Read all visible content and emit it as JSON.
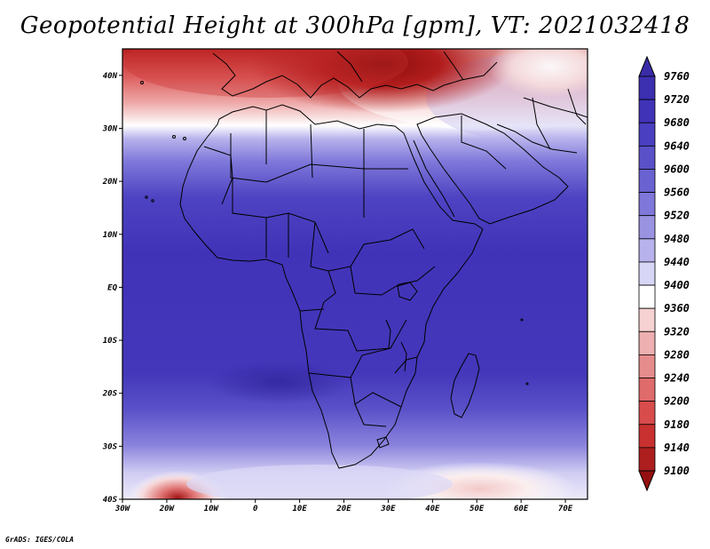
{
  "title": "Geopotential Height at 300hPa [gpm], VT: 2021032418",
  "credit": "GrADS: IGES/COLA",
  "map": {
    "region": "Africa",
    "lon_range": [
      -30,
      75
    ],
    "lat_range": [
      -40,
      45
    ],
    "lat_ticks": [
      {
        "value": 40,
        "label": "40N"
      },
      {
        "value": 30,
        "label": "30N"
      },
      {
        "value": 20,
        "label": "20N"
      },
      {
        "value": 10,
        "label": "10N"
      },
      {
        "value": 0,
        "label": "EQ"
      },
      {
        "value": -10,
        "label": "10S"
      },
      {
        "value": -20,
        "label": "20S"
      },
      {
        "value": -30,
        "label": "30S"
      },
      {
        "value": -40,
        "label": "40S"
      }
    ],
    "lon_ticks": [
      {
        "value": -30,
        "label": "30W"
      },
      {
        "value": -20,
        "label": "20W"
      },
      {
        "value": -10,
        "label": "10W"
      },
      {
        "value": 0,
        "label": "0"
      },
      {
        "value": 10,
        "label": "10E"
      },
      {
        "value": 20,
        "label": "20E"
      },
      {
        "value": 30,
        "label": "30E"
      },
      {
        "value": 40,
        "label": "40E"
      },
      {
        "value": 50,
        "label": "50E"
      },
      {
        "value": 60,
        "label": "60E"
      },
      {
        "value": 70,
        "label": "70E"
      }
    ]
  },
  "colorbar": {
    "levels": [
      "9760",
      "9720",
      "9680",
      "9640",
      "9600",
      "9560",
      "9520",
      "9480",
      "9440",
      "9400",
      "9360",
      "9320",
      "9280",
      "9240",
      "9200",
      "9180",
      "9140",
      "9100"
    ],
    "colors": [
      "#3a2ca8",
      "#3c2fb0",
      "#4133b8",
      "#4a3fc0",
      "#5a51c8",
      "#6a62d0",
      "#7f78da",
      "#9a93e2",
      "#b7b2ec",
      "#d8d6f6",
      "#ffffff",
      "#f6d2d2",
      "#eeb0b0",
      "#e68c8c",
      "#df6b6b",
      "#d84c4c",
      "#c93030",
      "#ad1f1f",
      "#941010"
    ]
  }
}
